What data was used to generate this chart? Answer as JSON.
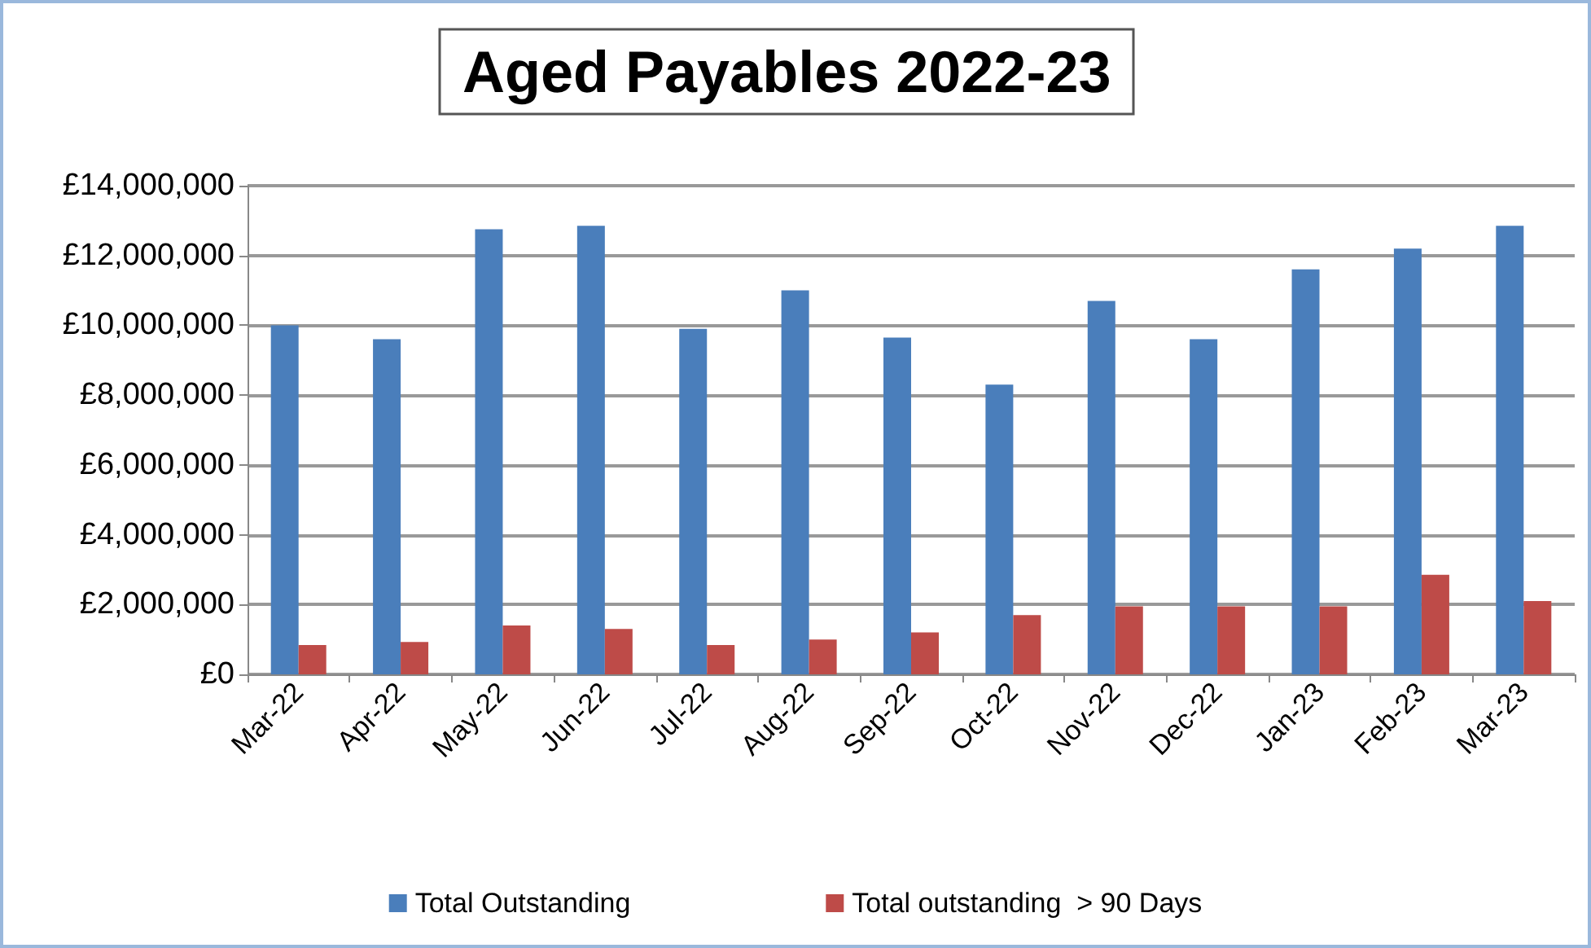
{
  "chart_data": {
    "type": "bar",
    "title": "Aged Payables 2022-23",
    "categories": [
      "Mar-22",
      "Apr-22",
      "May-22",
      "Jun-22",
      "Jul-22",
      "Aug-22",
      "Sep-22",
      "Oct-22",
      "Nov-22",
      "Dec-22",
      "Jan-23",
      "Feb-23",
      "Mar-23"
    ],
    "series": [
      {
        "name": "Total Outstanding",
        "color": "#4a7ebb",
        "values": [
          10000000,
          9600000,
          12750000,
          12850000,
          9900000,
          11000000,
          9650000,
          8300000,
          10700000,
          9600000,
          11600000,
          12200000,
          12850000
        ]
      },
      {
        "name": "Total outstanding  > 90 Days",
        "color": "#be4b48",
        "values": [
          840000,
          930000,
          1400000,
          1300000,
          840000,
          1000000,
          1200000,
          1700000,
          1950000,
          1950000,
          1950000,
          2850000,
          2100000
        ]
      }
    ],
    "ylim": [
      0,
      14000000
    ],
    "yticks": [
      {
        "value": 0,
        "label": "£0"
      },
      {
        "value": 2000000,
        "label": "£2,000,000"
      },
      {
        "value": 4000000,
        "label": "£4,000,000"
      },
      {
        "value": 6000000,
        "label": "£6,000,000"
      },
      {
        "value": 8000000,
        "label": "£8,000,000"
      },
      {
        "value": 10000000,
        "label": "£10,000,000"
      },
      {
        "value": 12000000,
        "label": "£12,000,000"
      },
      {
        "value": 14000000,
        "label": "£14,000,000"
      }
    ],
    "grid": "y",
    "legend": "bottom"
  }
}
